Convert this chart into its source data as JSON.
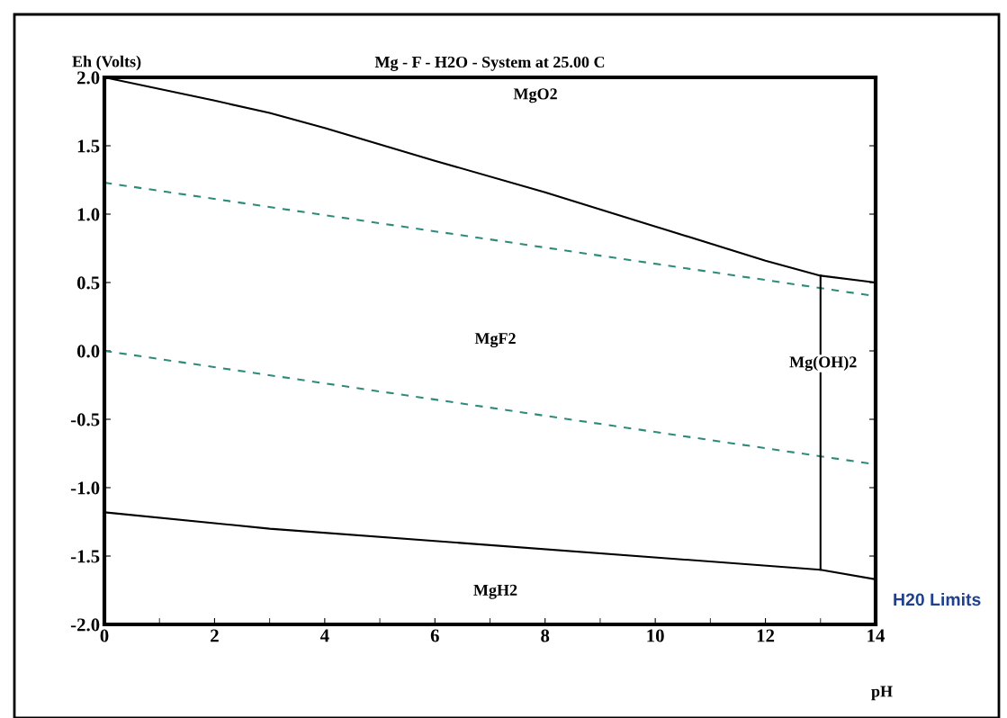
{
  "chart_data": {
    "type": "line",
    "title": "Mg - F - H2O - System at 25.00 C",
    "xlabel": "pH",
    "ylabel": "Eh (Volts)",
    "xlim": [
      0,
      14
    ],
    "ylim": [
      -2.0,
      2.0
    ],
    "xticks": [
      0,
      2,
      4,
      6,
      8,
      10,
      12,
      14
    ],
    "yticks": [
      {
        "value": -2.0,
        "label": "-2.0"
      },
      {
        "value": -1.5,
        "label": "-1.5"
      },
      {
        "value": -1.0,
        "label": "-1.0"
      },
      {
        "value": -0.5,
        "label": "-0.5"
      },
      {
        "value": 0.0,
        "label": "0.0"
      },
      {
        "value": 0.5,
        "label": "0.5"
      },
      {
        "value": 1.0,
        "label": "1.0"
      },
      {
        "value": 1.5,
        "label": "1.5"
      },
      {
        "value": 2.0,
        "label": "2.0"
      }
    ],
    "grid": false,
    "legend": false,
    "marker": "none",
    "series": [
      {
        "color": "#000000",
        "line_style": "solid",
        "x": [
          0,
          2,
          3,
          4,
          6,
          8,
          10,
          12,
          13,
          14
        ],
        "values": [
          2.0,
          1.83,
          1.74,
          1.63,
          1.39,
          1.16,
          0.91,
          0.66,
          0.55,
          0.5
        ]
      },
      {
        "color": "#2e8b7a",
        "line_style": "dashed",
        "x": [
          0,
          14
        ],
        "values": [
          1.23,
          0.4
        ]
      },
      {
        "color": "#2e8b7a",
        "line_style": "dashed",
        "x": [
          0,
          14
        ],
        "values": [
          0.0,
          -0.83
        ]
      },
      {
        "color": "#000000",
        "line_style": "solid",
        "x": [
          0,
          3,
          13,
          14
        ],
        "values": [
          -1.18,
          -1.3,
          -1.6,
          -1.67
        ]
      },
      {
        "color": "#000000",
        "line_style": "solid",
        "x": [
          13,
          13
        ],
        "values": [
          0.55,
          -1.6
        ]
      }
    ],
    "annotations": [
      "MgO2",
      "MgF2",
      "Mg(OH)2",
      "MgH2",
      "H20 Limits"
    ]
  }
}
